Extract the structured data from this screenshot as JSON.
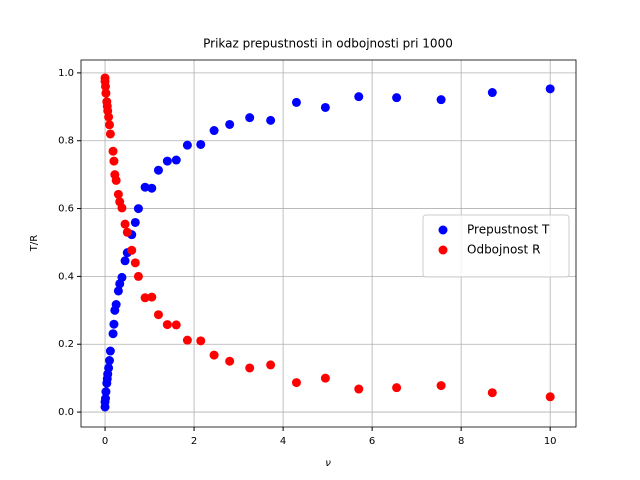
{
  "chart_data": {
    "type": "scatter",
    "title": "Prikaz prepustnosti in odbojnosti pri 1000",
    "x_label": "ν",
    "y_label": "T/R",
    "x": [
      0,
      0,
      0.01,
      0.02,
      0.04,
      0.05,
      0.06,
      0.08,
      0.1,
      0.12,
      0.18,
      0.2,
      0.22,
      0.25,
      0.3,
      0.33,
      0.38,
      0.45,
      0.5,
      0.6,
      0.68,
      0.75,
      0.9,
      1.05,
      1.2,
      1.4,
      1.6,
      1.85,
      2.15,
      2.45,
      2.8,
      3.25,
      3.72,
      4.3,
      4.95,
      5.7,
      6.55,
      7.55,
      8.7,
      10
    ],
    "series": [
      {
        "name": "Prepustnost T",
        "color": "#0000ff",
        "values": [
          0.015,
          0.03,
          0.04,
          0.06,
          0.085,
          0.098,
          0.112,
          0.13,
          0.152,
          0.18,
          0.231,
          0.259,
          0.3,
          0.317,
          0.357,
          0.378,
          0.397,
          0.446,
          0.47,
          0.523,
          0.559,
          0.6,
          0.663,
          0.66,
          0.713,
          0.74,
          0.743,
          0.787,
          0.789,
          0.83,
          0.848,
          0.868,
          0.86,
          0.913,
          0.898,
          0.93,
          0.927,
          0.921,
          0.942,
          0.953
        ]
      },
      {
        "name": "Odbojnost R",
        "color": "#ff0000",
        "values": [
          0.985,
          0.975,
          0.96,
          0.94,
          0.915,
          0.902,
          0.888,
          0.87,
          0.847,
          0.82,
          0.769,
          0.74,
          0.7,
          0.683,
          0.642,
          0.62,
          0.602,
          0.554,
          0.53,
          0.477,
          0.44,
          0.4,
          0.337,
          0.339,
          0.287,
          0.258,
          0.257,
          0.212,
          0.21,
          0.168,
          0.15,
          0.13,
          0.139,
          0.087,
          0.1,
          0.068,
          0.072,
          0.078,
          0.057,
          0.045
        ]
      }
    ],
    "xlim": [
      -0.54,
      10.58
    ],
    "ylim": [
      -0.044,
      1.038
    ],
    "xticks": [
      0,
      2,
      4,
      6,
      8,
      10
    ],
    "yticks": [
      {
        "value": 0,
        "label": "0.0"
      },
      {
        "value": 0.2,
        "label": "0.2"
      },
      {
        "value": 0.4,
        "label": "0.4"
      },
      {
        "value": 0.6,
        "label": "0.6"
      },
      {
        "value": 0.8,
        "label": "0.8"
      },
      {
        "value": 1,
        "label": "1.0"
      }
    ],
    "grid": true,
    "legend": "right"
  }
}
